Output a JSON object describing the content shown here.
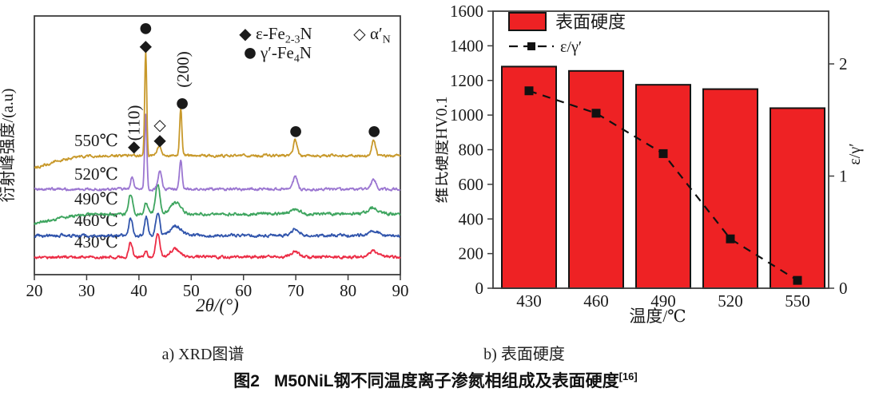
{
  "figure": {
    "panel_a_caption": "a) XRD图谱",
    "panel_b_caption": "b) 表面硬度",
    "main_caption_prefix": "图2",
    "main_caption_title": "M50NiL钢不同温度离子渗氮相组成及表面硬度",
    "main_caption_sup": "[16]"
  },
  "chart_data": [
    {
      "panel": "a",
      "type": "line",
      "title": "a) XRD图谱",
      "xlabel": "2θ/(°)",
      "ylabel": "衍射峰强度/(a.u)",
      "xlim": [
        20,
        90
      ],
      "xticks": [
        20,
        30,
        40,
        50,
        60,
        70,
        80,
        90
      ],
      "y_units": "arbitrary intensity units (stacked traces, no y ticks)",
      "grid": false,
      "legend_position": "top-right-inside",
      "legend": [
        {
          "marker": "filled-diamond",
          "label": "ε-Fe_{2-3}N"
        },
        {
          "marker": "filled-circle",
          "label": "γ′-Fe_{4}N"
        },
        {
          "marker": "open-diamond",
          "label": "α′_{N}"
        }
      ],
      "series": [
        {
          "name": "430℃",
          "color": "#EC2C45",
          "offset": 22,
          "noise": 1.3,
          "peaks": [
            [
              38.4,
              19,
              0.5
            ],
            [
              41.3,
              8,
              0.4
            ],
            [
              43.6,
              29,
              0.55
            ],
            [
              46.9,
              10,
              1.3
            ],
            [
              69.8,
              6,
              1.1
            ],
            [
              84.8,
              7,
              1.3
            ]
          ]
        },
        {
          "name": "460℃",
          "color": "#3155AC",
          "offset": 49,
          "noise": 1.4,
          "peaks": [
            [
              38.4,
              22,
              0.5
            ],
            [
              41.4,
              24,
              0.45
            ],
            [
              43.6,
              30,
              0.55
            ],
            [
              47.0,
              12,
              1.4
            ],
            [
              69.8,
              7,
              1.0
            ],
            [
              84.8,
              6,
              1.4
            ]
          ]
        },
        {
          "name": "490℃",
          "color": "#3EA55F",
          "offset": 76,
          "noise": 1.4,
          "peaks": [
            [
              17,
              -14,
              8
            ],
            [
              38.4,
              24,
              0.55
            ],
            [
              41.4,
              14,
              0.5
            ],
            [
              43.6,
              36,
              0.6
            ],
            [
              47.0,
              14,
              1.4
            ],
            [
              69.8,
              5,
              1.4
            ],
            [
              84.8,
              7,
              1.5
            ]
          ]
        },
        {
          "name": "520℃",
          "color": "#9B76D1",
          "offset": 107,
          "noise": 1.2,
          "peaks": [
            [
              38.7,
              16,
              0.4
            ],
            [
              41.3,
              92,
              0.3
            ],
            [
              44.0,
              24,
              0.5
            ],
            [
              48.0,
              36,
              0.35
            ],
            [
              69.9,
              16,
              0.55
            ],
            [
              84.9,
              12,
              0.65
            ]
          ]
        },
        {
          "name": "550℃",
          "color": "#C8992B",
          "offset": 149,
          "noise": 1.2,
          "peaks": [
            [
              18,
              -16,
              7
            ],
            [
              41.3,
              132,
              0.27
            ],
            [
              43.9,
              12,
              0.5
            ],
            [
              48.0,
              60,
              0.3
            ],
            [
              69.9,
              20,
              0.5
            ],
            [
              84.9,
              20,
              0.5
            ]
          ]
        }
      ],
      "peak_annotations": [
        {
          "marker": "filled-diamond",
          "x": 39.05,
          "y": 161
        },
        {
          "marker": "filled-diamond",
          "x": 41.3,
          "y": 287
        },
        {
          "marker": "filled-circle",
          "x": 41.3,
          "y": 309
        },
        {
          "marker": "open-diamond",
          "x": 44.0,
          "y": 188
        },
        {
          "marker": "filled-diamond",
          "x": 44.0,
          "y": 169
        },
        {
          "marker": "filled-circle",
          "x": 48.3,
          "y": 215
        },
        {
          "marker": "filled-circle",
          "x": 70.0,
          "y": 180
        },
        {
          "marker": "filled-circle",
          "x": 85.0,
          "y": 180
        },
        {
          "vtext": "(110)",
          "x": 39.0,
          "y": 190
        },
        {
          "vtext": "(200)",
          "x": 48.4,
          "y": 257
        }
      ]
    },
    {
      "panel": "b",
      "type": "bar",
      "title": "b) 表面硬度",
      "categories": [
        "430",
        "460",
        "490",
        "520",
        "550"
      ],
      "xlabel": "温度/℃",
      "left_axis": {
        "label": "维氏硬度HV0.1",
        "min": 0,
        "max": 1600,
        "ticks": [
          0,
          200,
          400,
          600,
          800,
          1000,
          1200,
          1400,
          1600
        ]
      },
      "right_axis": {
        "label": "ε/γ′",
        "min": 0,
        "max": 2.47,
        "ticks": [
          0,
          1,
          2
        ]
      },
      "bar_series": {
        "name": "表面硬度",
        "color": "#EE2224",
        "border": "#141414",
        "values": [
          1280,
          1255,
          1175,
          1150,
          1040
        ]
      },
      "line_series": {
        "name": "ε/γ′",
        "color": "#111111",
        "style": "dashed",
        "marker": "filled-square",
        "values": [
          1.76,
          1.56,
          1.2,
          0.44,
          0.07
        ]
      },
      "grid": false,
      "legend_position": "top-left-inside"
    }
  ]
}
